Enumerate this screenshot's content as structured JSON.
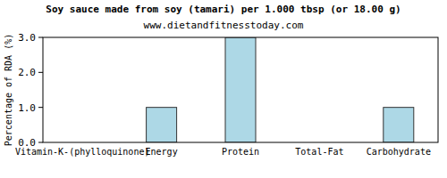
{
  "chart_data": {
    "type": "bar",
    "title": "Soy sauce made from soy (tamari) per 1.000 tbsp (or 18.00 g)",
    "subtitle": "www.dietandfitnesstoday.com",
    "y_label": "Percentage of RDA (%)",
    "categories": [
      "Vitamin-K-(phylloquinone)",
      "Energy",
      "Protein",
      "Total-Fat",
      "Carbohydrate"
    ],
    "values": [
      0,
      1,
      3,
      0,
      1
    ],
    "color": "#add8e6",
    "ylim": [
      0,
      3
    ],
    "yticks": [
      {
        "value": 0,
        "label": "0.0"
      },
      {
        "value": 1,
        "label": "1.0"
      },
      {
        "value": 2,
        "label": "2.0"
      },
      {
        "value": 3,
        "label": "3.0"
      }
    ],
    "grid": false
  }
}
